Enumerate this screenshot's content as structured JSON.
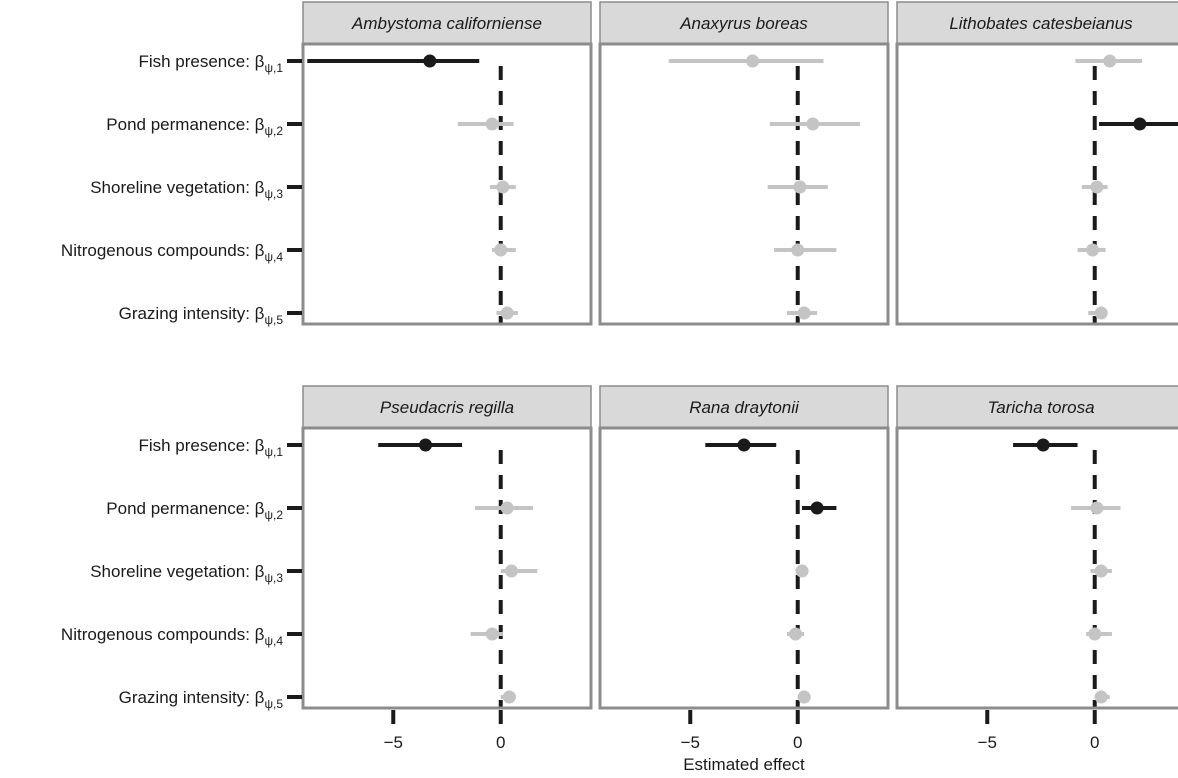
{
  "chart_data": {
    "type": "dot-and-whisker (forest) plot, faceted",
    "xlabel": "Estimated effect",
    "x_ticks": [
      -5,
      0
    ],
    "x_tick_labels": [
      "−5",
      "0"
    ],
    "xlim": [
      -9.2,
      4.2
    ],
    "reference_line": 0,
    "y_labels": [
      {
        "main": "Fish presence: β",
        "sub": "ψ,1"
      },
      {
        "main": "Pond permanence: β",
        "sub": "ψ,2"
      },
      {
        "main": "Shoreline vegetation: β",
        "sub": "ψ,3"
      },
      {
        "main": "Nitrogenous compounds: β",
        "sub": "ψ,4"
      },
      {
        "main": "Grazing intensity: β",
        "sub": "ψ,5"
      }
    ],
    "colors": {
      "significant": "#1a1a1a",
      "nonsignificant": "#c4c4c4",
      "strip": "#d9d9d9",
      "panel_border": "#8c8c8c"
    },
    "panels": [
      {
        "title": "Ambystoma californiense",
        "points": [
          {
            "est": -3.3,
            "lo": -9.0,
            "hi": -1.0,
            "significant": true
          },
          {
            "est": -0.4,
            "lo": -2.0,
            "hi": 0.6,
            "significant": false
          },
          {
            "est": 0.1,
            "lo": -0.5,
            "hi": 0.7,
            "significant": false
          },
          {
            "est": 0.0,
            "lo": -0.4,
            "hi": 0.7,
            "significant": false
          },
          {
            "est": 0.3,
            "lo": -0.2,
            "hi": 0.8,
            "significant": false
          }
        ]
      },
      {
        "title": "Anaxyrus boreas",
        "points": [
          {
            "est": -2.1,
            "lo": -6.0,
            "hi": 1.2,
            "significant": false
          },
          {
            "est": 0.7,
            "lo": -1.3,
            "hi": 2.9,
            "significant": false
          },
          {
            "est": 0.1,
            "lo": -1.4,
            "hi": 1.4,
            "significant": false
          },
          {
            "est": 0.0,
            "lo": -1.1,
            "hi": 1.8,
            "significant": false
          },
          {
            "est": 0.3,
            "lo": -0.5,
            "hi": 0.9,
            "significant": false
          }
        ]
      },
      {
        "title": "Lithobates catesbeianus",
        "points": [
          {
            "est": 0.7,
            "lo": -0.9,
            "hi": 2.2,
            "significant": false
          },
          {
            "est": 2.1,
            "lo": 0.2,
            "hi": 4.0,
            "significant": true
          },
          {
            "est": 0.1,
            "lo": -0.6,
            "hi": 0.6,
            "significant": false
          },
          {
            "est": -0.1,
            "lo": -0.8,
            "hi": 0.5,
            "significant": false
          },
          {
            "est": 0.3,
            "lo": -0.3,
            "hi": 0.5,
            "significant": false
          }
        ]
      },
      {
        "title": "Pseudacris regilla",
        "points": [
          {
            "est": -3.5,
            "lo": -5.7,
            "hi": -1.8,
            "significant": true
          },
          {
            "est": 0.3,
            "lo": -1.2,
            "hi": 1.5,
            "significant": false
          },
          {
            "est": 0.5,
            "lo": 0.0,
            "hi": 1.7,
            "significant": false
          },
          {
            "est": -0.4,
            "lo": -1.4,
            "hi": 0.1,
            "significant": false
          },
          {
            "est": 0.4,
            "lo": 0.0,
            "hi": 0.7,
            "significant": false
          }
        ]
      },
      {
        "title": "Rana draytonii",
        "points": [
          {
            "est": -2.5,
            "lo": -4.3,
            "hi": -1.0,
            "significant": true
          },
          {
            "est": 0.9,
            "lo": 0.2,
            "hi": 1.8,
            "significant": true
          },
          {
            "est": 0.2,
            "lo": -0.1,
            "hi": 0.5,
            "significant": false
          },
          {
            "est": -0.1,
            "lo": -0.5,
            "hi": 0.3,
            "significant": false
          },
          {
            "est": 0.3,
            "lo": 0.0,
            "hi": 0.6,
            "significant": false
          }
        ]
      },
      {
        "title": "Taricha torosa",
        "points": [
          {
            "est": -2.4,
            "lo": -3.8,
            "hi": -0.8,
            "significant": true
          },
          {
            "est": 0.1,
            "lo": -1.1,
            "hi": 1.2,
            "significant": false
          },
          {
            "est": 0.3,
            "lo": -0.2,
            "hi": 0.8,
            "significant": false
          },
          {
            "est": 0.0,
            "lo": -0.4,
            "hi": 0.8,
            "significant": false
          },
          {
            "est": 0.3,
            "lo": 0.0,
            "hi": 0.7,
            "significant": false
          }
        ]
      }
    ]
  }
}
